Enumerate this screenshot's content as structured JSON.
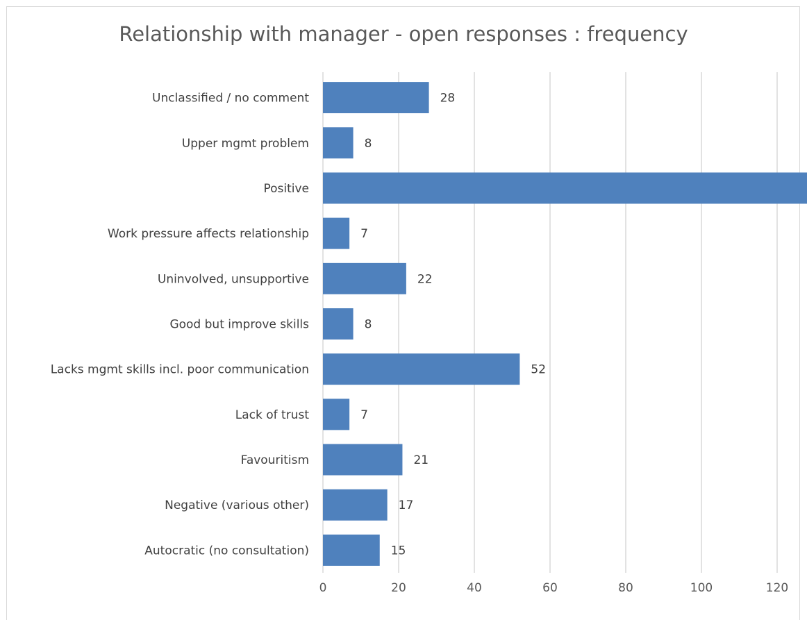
{
  "chart_data": {
    "type": "bar",
    "orientation": "horizontal",
    "title": "Relationship with manager - open responses : frequency",
    "xlabel": "",
    "ylabel": "",
    "categories": [
      "Unclassified / no comment",
      "Upper mgmt problem",
      "Positive",
      "Work pressure affects relationship",
      "Uninvolved, unsupportive",
      "Good but improve skills",
      "Lacks mgmt skills incl. poor communication",
      "Lack of trust",
      "Favouritism",
      "Negative (various other)",
      "Autocratic (no consultation)"
    ],
    "values": [
      28,
      8,
      134,
      7,
      22,
      8,
      52,
      7,
      21,
      17,
      15
    ],
    "xlim": [
      0,
      160
    ],
    "xticks": [
      0,
      20,
      40,
      60,
      80,
      100,
      120,
      140,
      160
    ],
    "grid": "vertical",
    "legend": "none",
    "bar_color": "#4f81bd",
    "gridline_color": "#d9d9d9"
  }
}
